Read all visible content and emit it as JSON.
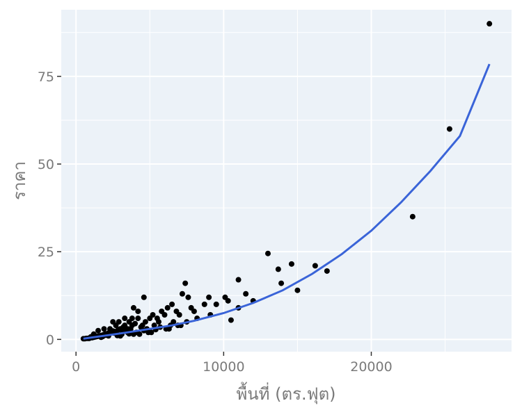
{
  "chart_data": {
    "type": "scatter",
    "title": "",
    "xlabel": "พื้นที่ (ตร.ฟุต)",
    "ylabel": "ราคา",
    "xlim": [
      -1000,
      29500
    ],
    "ylim": [
      -3.5,
      94
    ],
    "x_ticks": [
      0,
      10000,
      20000
    ],
    "x_tick_labels": [
      "0",
      "10000",
      "20000"
    ],
    "y_ticks": [
      0,
      25,
      50,
      75
    ],
    "y_tick_labels": [
      "0",
      "25",
      "50",
      "75"
    ],
    "grid": true,
    "legend": "none",
    "colors": {
      "panel_background": "#ecf2f8",
      "grid": "#ffffff",
      "points": "#000000",
      "fit_line": "#3a64d8",
      "axis_text": "#7a7a7a"
    },
    "series": [
      {
        "kind": "points",
        "x": [
          28000,
          25300,
          22800,
          16200,
          17000,
          14600,
          13700,
          13000,
          13900,
          15000,
          11000,
          11500,
          12000,
          10100,
          10300,
          11000,
          9500,
          9000,
          8700,
          7400,
          7600,
          7200,
          8000,
          7800,
          7000,
          6800,
          6500,
          6200,
          6000,
          5800,
          5500,
          5200,
          5000,
          4700,
          4600,
          4500,
          4200,
          4000,
          3900,
          3800,
          3600,
          3500,
          3300,
          3200,
          3000,
          2900,
          2800,
          2600,
          2500,
          2400,
          2200,
          2100,
          2000,
          1900,
          1800,
          1700,
          1600,
          1500,
          1400,
          1300,
          1200,
          1100,
          1000,
          900,
          800,
          700,
          600,
          500,
          2300,
          2700,
          3100,
          3400,
          3700,
          4100,
          4400,
          4800,
          5300,
          5600,
          6100,
          6600,
          7100,
          3800,
          4200,
          2900,
          3300,
          2500,
          1900,
          1500,
          1200,
          3000,
          3500,
          4300,
          5100,
          6300,
          6900,
          7500,
          8200,
          9100,
          10500,
          2000,
          2600,
          3200,
          1800,
          1400,
          1000,
          5700,
          6400,
          4900,
          3900,
          2200,
          1700,
          2800,
          3600,
          4600,
          5400,
          900
        ],
        "y": [
          90,
          60,
          35,
          21,
          19.5,
          21.5,
          20,
          24.5,
          16,
          14,
          17,
          13,
          11,
          12,
          11,
          9,
          10,
          12,
          10,
          16,
          12,
          13,
          8,
          9,
          7,
          8,
          10,
          9,
          7,
          8,
          6,
          7,
          6,
          5,
          12,
          4,
          6,
          4.5,
          9,
          4,
          5,
          3,
          4,
          3.5,
          3,
          2.8,
          2.5,
          2.2,
          2.4,
          2,
          1.8,
          1.5,
          1.6,
          1.4,
          1.2,
          1.1,
          1.0,
          0.9,
          0.8,
          0.7,
          0.6,
          0.5,
          0.5,
          0.4,
          0.3,
          0.3,
          0.2,
          0.2,
          3,
          4,
          1.5,
          2.5,
          3,
          2,
          3.5,
          3,
          4,
          5,
          3,
          5,
          4,
          6,
          8,
          5,
          6,
          5,
          3,
          2.5,
          1.5,
          1,
          2,
          1.5,
          2,
          3,
          4,
          5,
          6,
          7,
          5.5,
          1.2,
          1.8,
          2.3,
          0.8,
          0.9,
          0.7,
          3.5,
          4,
          2,
          1.5,
          1,
          0.6,
          1.1,
          1.6,
          2.5,
          2.8,
          0.3
        ]
      },
      {
        "kind": "fit-line",
        "x": [
          500,
          1500,
          2500,
          3500,
          5000,
          6500,
          8000,
          10000,
          12000,
          14000,
          16000,
          18000,
          20000,
          22000,
          24000,
          26000,
          28000
        ],
        "y": [
          0.2,
          0.8,
          1.4,
          2.0,
          3.0,
          4.0,
          5.3,
          7.5,
          10.4,
          14.0,
          18.7,
          24.3,
          31.0,
          39.0,
          48.0,
          58.0,
          78.5
        ]
      }
    ]
  }
}
